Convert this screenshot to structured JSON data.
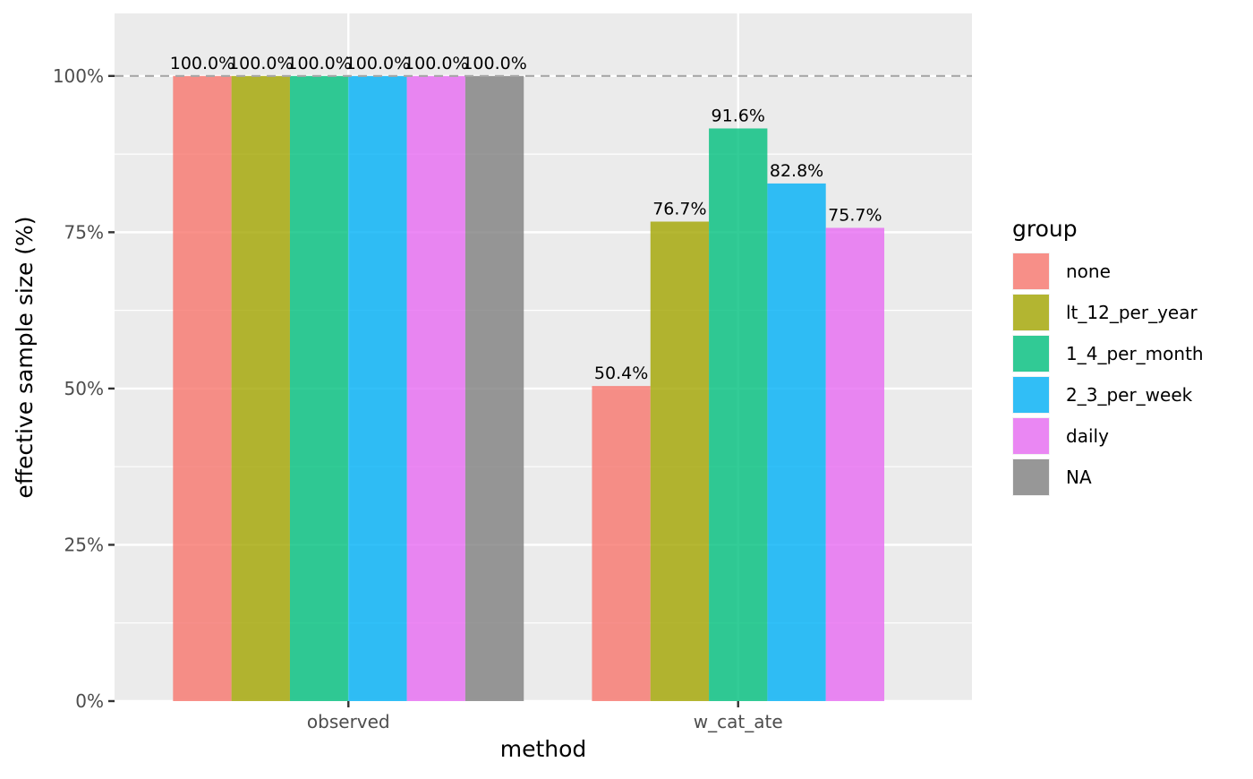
{
  "chart_data": {
    "type": "bar",
    "categories": [
      "observed",
      "w_cat_ate"
    ],
    "series": [
      {
        "name": "none",
        "color": "#F8766D",
        "values": [
          100.0,
          50.4
        ],
        "labels": [
          "100.0%",
          "50.4%"
        ]
      },
      {
        "name": "lt_12_per_year",
        "color": "#A3A500",
        "values": [
          100.0,
          76.7
        ],
        "labels": [
          "100.0%",
          "76.7%"
        ]
      },
      {
        "name": "1_4_per_month",
        "color": "#00BF7D",
        "values": [
          100.0,
          91.6
        ],
        "labels": [
          "100.0%",
          "91.6%"
        ]
      },
      {
        "name": "2_3_per_week",
        "color": "#00B0F6",
        "values": [
          100.0,
          82.8
        ],
        "labels": [
          "100.0%",
          "82.8%"
        ]
      },
      {
        "name": "daily",
        "color": "#E76BF3",
        "values": [
          100.0,
          75.7
        ],
        "labels": [
          "100.0%",
          "75.7%"
        ]
      },
      {
        "name": "NA",
        "color": "#7F7F7F",
        "values": [
          100.0,
          null
        ],
        "labels": [
          "100.0%",
          null
        ]
      }
    ],
    "xlabel": "method",
    "ylabel": "effective sample size (%)",
    "ylim": [
      0,
      110
    ],
    "yticks": [
      0,
      25,
      50,
      75,
      100
    ],
    "ytick_labels": [
      "0%",
      "25%",
      "50%",
      "75%",
      "100%"
    ],
    "reference_line": {
      "y": 100,
      "style": "dashed",
      "color": "#A6A6A6"
    },
    "legend": {
      "title": "group",
      "position": "right"
    },
    "grid": true,
    "bar_opacity": 0.8,
    "panel_background": "#EBEBEB"
  }
}
